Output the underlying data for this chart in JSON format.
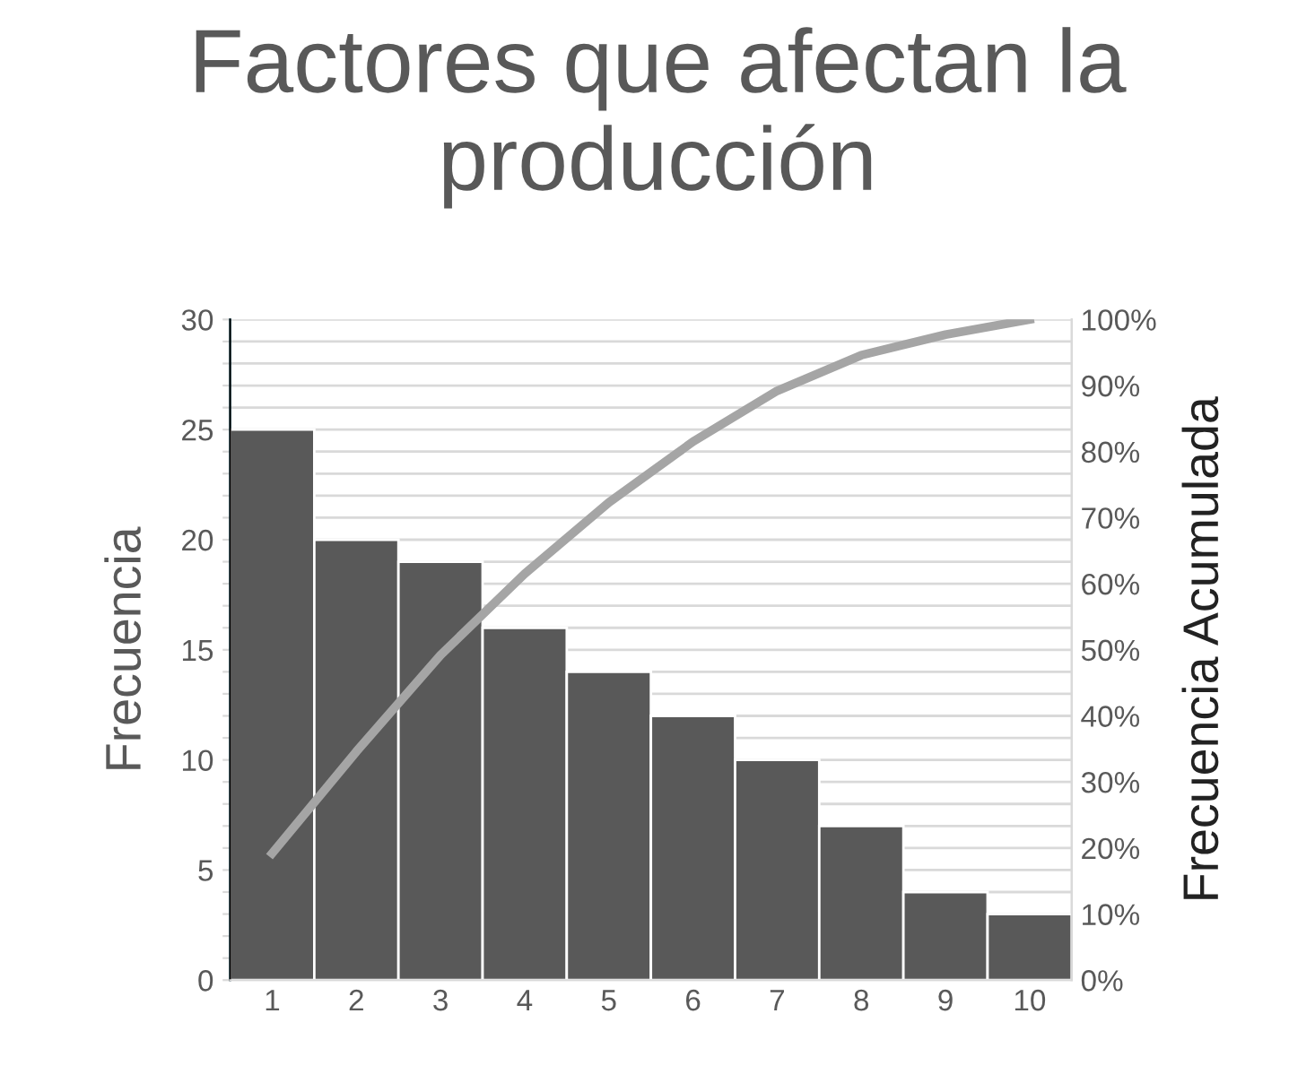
{
  "chart_data": {
    "type": "bar",
    "title": "Factores que afectan la producción",
    "ylabel": "Frecuencia",
    "y2label": "Frecuencia Acumulada",
    "categories": [
      "1",
      "2",
      "3",
      "4",
      "5",
      "6",
      "7",
      "8",
      "9",
      "10"
    ],
    "series": [
      {
        "color": "#595959",
        "values": [
          25,
          20,
          19,
          16,
          14,
          12,
          10,
          7,
          4,
          3
        ]
      },
      {
        "type": "line",
        "axis": "y2",
        "color": "#a5a5a5",
        "values": [
          19.2,
          34.6,
          49.2,
          61.5,
          72.3,
          81.5,
          89.2,
          94.6,
          97.7,
          100
        ]
      }
    ],
    "ylim": [
      0,
      30
    ],
    "yticks": [
      0,
      {
        "value": 1,
        "label": null
      },
      {
        "value": 2,
        "label": null
      },
      {
        "value": 3,
        "label": null
      },
      {
        "value": 4,
        "label": null
      },
      5,
      {
        "value": 6,
        "label": null
      },
      {
        "value": 7,
        "label": null
      },
      {
        "value": 8,
        "label": null
      },
      {
        "value": 9,
        "label": null
      },
      10,
      {
        "value": 11,
        "label": null
      },
      {
        "value": 12,
        "label": null
      },
      {
        "value": 13,
        "label": null
      },
      {
        "value": 14,
        "label": null
      },
      15,
      {
        "value": 16,
        "label": null
      },
      {
        "value": 17,
        "label": null
      },
      {
        "value": 18,
        "label": null
      },
      {
        "value": 19,
        "label": null
      },
      20,
      {
        "value": 21,
        "label": null
      },
      {
        "value": 22,
        "label": null
      },
      {
        "value": 23,
        "label": null
      },
      {
        "value": 24,
        "label": null
      },
      25,
      {
        "value": 26,
        "label": null
      },
      {
        "value": 27,
        "label": null
      },
      {
        "value": 28,
        "label": null
      },
      {
        "value": 29,
        "label": null
      },
      30
    ],
    "y2lim": [
      0,
      100
    ],
    "y2ticks": [
      {
        "value": 0,
        "label": "0%"
      },
      {
        "value": 10,
        "label": "10%"
      },
      {
        "value": 20,
        "label": "20%"
      },
      {
        "value": 30,
        "label": "30%"
      },
      {
        "value": 40,
        "label": "40%"
      },
      {
        "value": 50,
        "label": "50%"
      },
      {
        "value": 60,
        "label": "60%"
      },
      {
        "value": 70,
        "label": "70%"
      },
      {
        "value": 80,
        "label": "80%"
      },
      {
        "value": 90,
        "label": "90%"
      },
      {
        "value": 100,
        "label": "100%"
      }
    ],
    "grid": "y",
    "marker": "none",
    "line_style": "solid"
  }
}
